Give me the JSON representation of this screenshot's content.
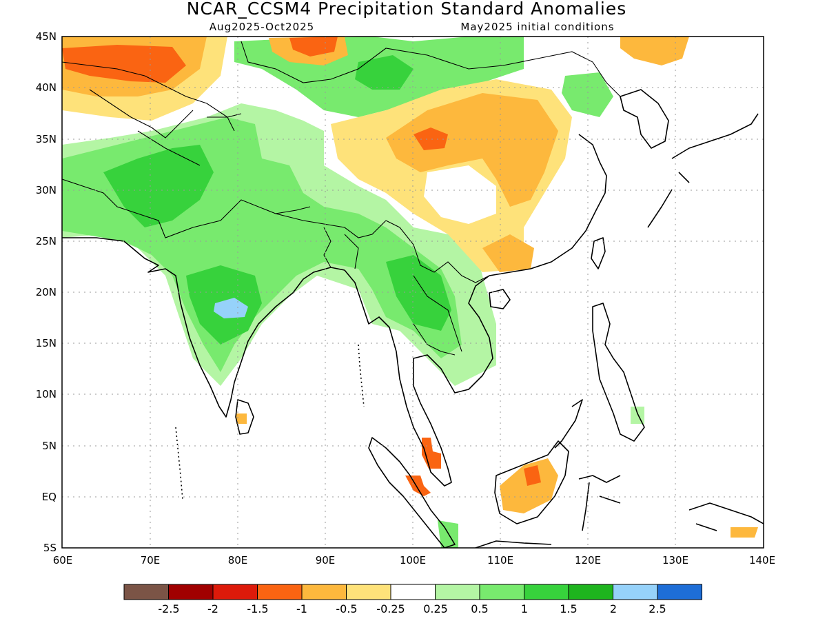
{
  "title": "NCAR_CCSM4 Precipitation Standard Anomalies",
  "subtitle_left": "Aug2025-Oct2025",
  "subtitle_right": "May2025 initial conditions",
  "lat_labels": [
    "45N",
    "40N",
    "35N",
    "30N",
    "25N",
    "20N",
    "15N",
    "10N",
    "5N",
    "EQ",
    "5S"
  ],
  "lon_labels": [
    "60E",
    "70E",
    "80E",
    "90E",
    "100E",
    "110E",
    "120E",
    "130E",
    "140E"
  ],
  "colorbar": {
    "colors": [
      "#7b5446",
      "#a00000",
      "#dd1a0a",
      "#fa6412",
      "#fdb83d",
      "#fee27a",
      "#ffffff",
      "#b4f5a4",
      "#78ea6e",
      "#37d23c",
      "#1eb41e",
      "#96d2fa",
      "#1e6ed7"
    ],
    "labels": [
      "-2.5",
      "-2",
      "-1.5",
      "-1",
      "-0.5",
      "-0.25",
      "0.25",
      "0.5",
      "1",
      "1.5",
      "2",
      "2.5"
    ]
  }
}
